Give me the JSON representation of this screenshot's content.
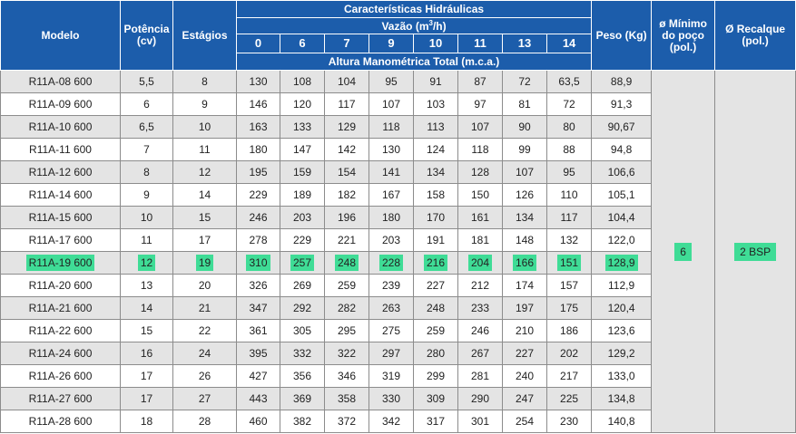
{
  "header": {
    "modelo": "Modelo",
    "potencia": "Potência (cv)",
    "estagios": "Estágios",
    "caracteristicas": "Características Hidráulicas",
    "vazao_prefix": "Vazão (m",
    "vazao_sup": "3",
    "vazao_suffix": "/h)",
    "vazao_values": [
      "0",
      "6",
      "7",
      "9",
      "10",
      "11",
      "13",
      "14"
    ],
    "altura": "Altura Manométrica Total (m.c.a.)",
    "peso": "Peso (Kg)",
    "minimo_poco": "ø Mínimo do poço (pol.)",
    "recalque": "Ø Recalque (pol.)"
  },
  "side": {
    "minimo_poco": "6",
    "recalque": "2 BSP"
  },
  "highlight_color": "#3fdc96",
  "header_color": "#1c5dab",
  "rows": [
    {
      "modelo": "R11A-08 600",
      "potencia": "5,5",
      "estagios": "8",
      "alturas": [
        "130",
        "108",
        "104",
        "95",
        "91",
        "87",
        "72",
        "63,5"
      ],
      "peso": "88,9"
    },
    {
      "modelo": "R11A-09 600",
      "potencia": "6",
      "estagios": "9",
      "alturas": [
        "146",
        "120",
        "117",
        "107",
        "103",
        "97",
        "81",
        "72"
      ],
      "peso": "91,3"
    },
    {
      "modelo": "R11A-10 600",
      "potencia": "6,5",
      "estagios": "10",
      "alturas": [
        "163",
        "133",
        "129",
        "118",
        "113",
        "107",
        "90",
        "80"
      ],
      "peso": "90,67"
    },
    {
      "modelo": "R11A-11 600",
      "potencia": "7",
      "estagios": "11",
      "alturas": [
        "180",
        "147",
        "142",
        "130",
        "124",
        "118",
        "99",
        "88"
      ],
      "peso": "94,8"
    },
    {
      "modelo": "R11A-12 600",
      "potencia": "8",
      "estagios": "12",
      "alturas": [
        "195",
        "159",
        "154",
        "141",
        "134",
        "128",
        "107",
        "95"
      ],
      "peso": "106,6"
    },
    {
      "modelo": "R11A-14 600",
      "potencia": "9",
      "estagios": "14",
      "alturas": [
        "229",
        "189",
        "182",
        "167",
        "158",
        "150",
        "126",
        "110"
      ],
      "peso": "105,1"
    },
    {
      "modelo": "R11A-15 600",
      "potencia": "10",
      "estagios": "15",
      "alturas": [
        "246",
        "203",
        "196",
        "180",
        "170",
        "161",
        "134",
        "117"
      ],
      "peso": "104,4"
    },
    {
      "modelo": "R11A-17 600",
      "potencia": "11",
      "estagios": "17",
      "alturas": [
        "278",
        "229",
        "221",
        "203",
        "191",
        "181",
        "148",
        "132"
      ],
      "peso": "122,0"
    },
    {
      "modelo": "R11A-19 600",
      "potencia": "12",
      "estagios": "19",
      "alturas": [
        "310",
        "257",
        "248",
        "228",
        "216",
        "204",
        "166",
        "151"
      ],
      "peso": "128,9",
      "highlight": true
    },
    {
      "modelo": "R11A-20 600",
      "potencia": "13",
      "estagios": "20",
      "alturas": [
        "326",
        "269",
        "259",
        "239",
        "227",
        "212",
        "174",
        "157"
      ],
      "peso": "112,9"
    },
    {
      "modelo": "R11A-21 600",
      "potencia": "14",
      "estagios": "21",
      "alturas": [
        "347",
        "292",
        "282",
        "263",
        "248",
        "233",
        "197",
        "175"
      ],
      "peso": "120,4"
    },
    {
      "modelo": "R11A-22 600",
      "potencia": "15",
      "estagios": "22",
      "alturas": [
        "361",
        "305",
        "295",
        "275",
        "259",
        "246",
        "210",
        "186"
      ],
      "peso": "123,6"
    },
    {
      "modelo": "R11A-24 600",
      "potencia": "16",
      "estagios": "24",
      "alturas": [
        "395",
        "332",
        "322",
        "297",
        "280",
        "267",
        "227",
        "202"
      ],
      "peso": "129,2"
    },
    {
      "modelo": "R11A-26 600",
      "potencia": "17",
      "estagios": "26",
      "alturas": [
        "427",
        "356",
        "346",
        "319",
        "299",
        "281",
        "240",
        "217"
      ],
      "peso": "133,0"
    },
    {
      "modelo": "R11A-27 600",
      "potencia": "17",
      "estagios": "27",
      "alturas": [
        "443",
        "369",
        "358",
        "330",
        "309",
        "290",
        "247",
        "225"
      ],
      "peso": "134,8"
    },
    {
      "modelo": "R11A-28 600",
      "potencia": "18",
      "estagios": "28",
      "alturas": [
        "460",
        "382",
        "372",
        "342",
        "317",
        "301",
        "254",
        "230"
      ],
      "peso": "140,8"
    }
  ]
}
